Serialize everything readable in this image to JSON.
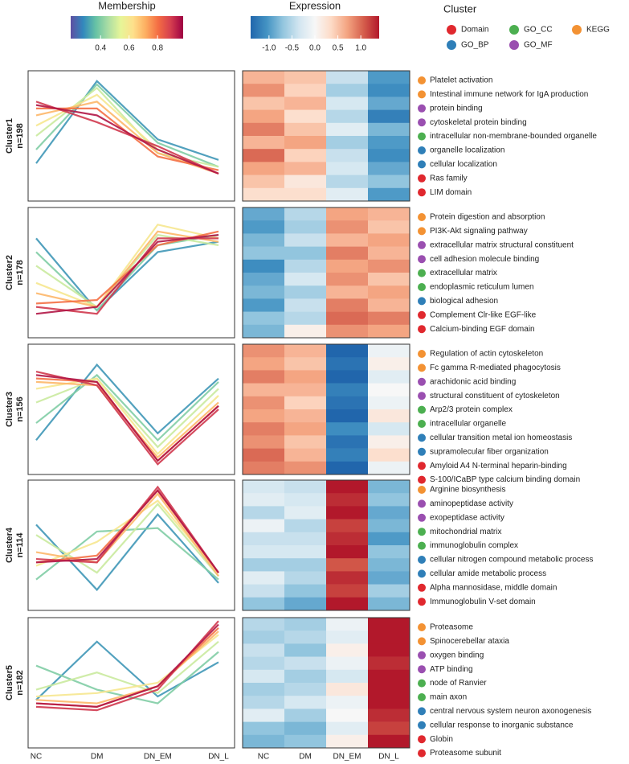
{
  "chart_data": {
    "type": "cluster-profile",
    "membership_legend": {
      "title": "Membership",
      "lim": [
        0.19,
        0.98
      ],
      "ticks": [
        0.4,
        0.6,
        0.8
      ]
    },
    "expression_legend": {
      "title": "Expression",
      "lim": [
        -1.4,
        1.4
      ],
      "ticks": [
        {
          "value": -1.0,
          "label": "-1.0"
        },
        -0.5,
        {
          "value": 0.0,
          "label": "0.0"
        },
        0.5,
        {
          "value": 1.0,
          "label": "1.0"
        }
      ]
    },
    "category_legend": {
      "title": "Cluster",
      "items": [
        {
          "name": "Domain",
          "color": "#e0282e"
        },
        {
          "name": "GO_CC",
          "color": "#4caf50"
        },
        {
          "name": "KEGG",
          "color": "#f39233"
        },
        {
          "name": "GO_BP",
          "color": "#2f7fb8"
        },
        {
          "name": "GO_MF",
          "color": "#9a4fb0"
        }
      ]
    },
    "categories": [
      "NC",
      "DM",
      "DN_EM",
      "DN_L"
    ],
    "ylim": [
      -1.9,
      1.9
    ],
    "clusters": [
      {
        "name": "Cluster1",
        "n": "n=198",
        "profiles": [
          {
            "membership": 0.3,
            "values": [
              -0.8,
              1.6,
              -0.1,
              -0.7
            ]
          },
          {
            "membership": 0.4,
            "values": [
              -0.4,
              1.5,
              -0.2,
              -0.9
            ]
          },
          {
            "membership": 0.5,
            "values": [
              0.0,
              1.4,
              -0.5,
              -0.9
            ]
          },
          {
            "membership": 0.6,
            "values": [
              0.3,
              1.2,
              -0.4,
              -1.1
            ]
          },
          {
            "membership": 0.7,
            "values": [
              0.6,
              1.0,
              -0.5,
              -1.1
            ]
          },
          {
            "membership": 0.8,
            "values": [
              0.8,
              0.8,
              -0.6,
              -1.0
            ]
          },
          {
            "membership": 0.9,
            "values": [
              1.0,
              0.4,
              -0.3,
              -1.1
            ]
          },
          {
            "membership": 0.95,
            "values": [
              0.9,
              0.6,
              -0.4,
              -1.1
            ]
          }
        ],
        "heatmap": [
          [
            0.6,
            0.8,
            0.5,
            0.7,
            0.9,
            0.6,
            1.0,
            0.7,
            0.5,
            0.3
          ],
          [
            0.5,
            0.4,
            0.6,
            0.3,
            0.5,
            0.7,
            0.4,
            0.6,
            0.2,
            0.3
          ],
          [
            -0.4,
            -0.6,
            -0.3,
            -0.5,
            -0.2,
            -0.6,
            -0.4,
            -0.3,
            -0.5,
            -0.2
          ],
          [
            -1.0,
            -1.1,
            -0.9,
            -1.2,
            -0.8,
            -1.0,
            -1.1,
            -0.9,
            -0.7,
            -1.0
          ]
        ],
        "terms": [
          {
            "text": "Platelet activation",
            "category": "KEGG"
          },
          {
            "text": "Intestinal immune network for IgA production",
            "category": "KEGG"
          },
          {
            "text": "protein binding",
            "category": "GO_MF"
          },
          {
            "text": "cytoskeletal protein binding",
            "category": "GO_MF"
          },
          {
            "text": "intracellular non-membrane-bounded organelle",
            "category": "GO_CC"
          },
          {
            "text": "organelle localization",
            "category": "GO_BP"
          },
          {
            "text": "cellular localization",
            "category": "GO_BP"
          },
          {
            "text": "Ras family",
            "category": "Domain"
          },
          {
            "text": "LIM domain",
            "category": "Domain"
          }
        ]
      },
      {
        "name": "Cluster2",
        "n": "n=178",
        "profiles": [
          {
            "membership": 0.3,
            "values": [
              1.0,
              -1.1,
              0.6,
              0.9
            ]
          },
          {
            "membership": 0.4,
            "values": [
              0.6,
              -1.1,
              0.8,
              1.1
            ]
          },
          {
            "membership": 0.5,
            "values": [
              0.2,
              -1.0,
              1.1,
              0.8
            ]
          },
          {
            "membership": 0.6,
            "values": [
              -0.3,
              -1.0,
              1.4,
              1.0
            ]
          },
          {
            "membership": 0.7,
            "values": [
              -0.6,
              -1.0,
              1.2,
              0.9
            ]
          },
          {
            "membership": 0.8,
            "values": [
              -0.9,
              -0.8,
              0.8,
              1.2
            ]
          },
          {
            "membership": 0.9,
            "values": [
              -1.0,
              -1.2,
              1.0,
              1.0
            ]
          },
          {
            "membership": 0.95,
            "values": [
              -1.2,
              -1.0,
              0.9,
              1.1
            ]
          }
        ],
        "heatmap": [
          [
            -0.9,
            -1.0,
            -0.8,
            -0.7,
            -1.1,
            -0.9,
            -0.8,
            -1.0,
            -0.7,
            -0.8
          ],
          [
            -0.5,
            -0.6,
            -0.4,
            -0.7,
            -0.5,
            -0.3,
            -0.6,
            -0.4,
            -0.5,
            0.1
          ],
          [
            0.7,
            0.8,
            0.6,
            0.9,
            0.7,
            0.8,
            0.6,
            0.9,
            1.0,
            0.8
          ],
          [
            0.6,
            0.5,
            0.7,
            0.6,
            0.8,
            0.5,
            0.7,
            0.6,
            0.9,
            0.7
          ]
        ],
        "terms": [
          {
            "text": "Protein digestion and absorption",
            "category": "KEGG"
          },
          {
            "text": "PI3K-Akt signaling pathway",
            "category": "KEGG"
          },
          {
            "text": "extracellular matrix structural constituent",
            "category": "GO_MF"
          },
          {
            "text": "cell adhesion molecule binding",
            "category": "GO_MF"
          },
          {
            "text": "extracellular matrix",
            "category": "GO_CC"
          },
          {
            "text": "endoplasmic reticulum lumen",
            "category": "GO_CC"
          },
          {
            "text": "biological adhesion",
            "category": "GO_BP"
          },
          {
            "text": "Complement Clr-like EGF-like",
            "category": "Domain"
          },
          {
            "text": "Calcium-binding EGF domain",
            "category": "Domain"
          }
        ]
      },
      {
        "name": "Cluster3",
        "n": "n=156",
        "profiles": [
          {
            "membership": 0.3,
            "values": [
              -0.9,
              1.3,
              -0.7,
              0.9
            ]
          },
          {
            "membership": 0.4,
            "values": [
              -0.4,
              1.0,
              -0.9,
              0.8
            ]
          },
          {
            "membership": 0.5,
            "values": [
              0.2,
              0.9,
              -1.1,
              0.6
            ]
          },
          {
            "membership": 0.6,
            "values": [
              0.6,
              0.9,
              -1.3,
              0.4
            ]
          },
          {
            "membership": 0.7,
            "values": [
              0.8,
              0.7,
              -1.4,
              0.2
            ]
          },
          {
            "membership": 0.8,
            "values": [
              0.9,
              0.8,
              -1.5,
              0.1
            ]
          },
          {
            "membership": 0.9,
            "values": [
              1.1,
              0.7,
              -1.6,
              0.0
            ]
          },
          {
            "membership": 0.95,
            "values": [
              1.0,
              0.8,
              -1.5,
              0.1
            ]
          }
        ],
        "heatmap": [
          [
            0.8,
            0.7,
            0.9,
            0.6,
            0.8,
            0.7,
            0.9,
            0.8,
            1.0,
            0.9
          ],
          [
            0.6,
            0.5,
            0.7,
            0.6,
            0.4,
            0.6,
            0.7,
            0.5,
            0.6,
            0.8
          ],
          [
            -1.4,
            -1.3,
            -1.4,
            -1.2,
            -1.3,
            -1.4,
            -1.1,
            -1.3,
            -1.2,
            -1.4
          ],
          [
            -0.1,
            0.1,
            -0.2,
            0.0,
            -0.1,
            0.2,
            -0.3,
            0.1,
            0.3,
            -0.1
          ]
        ],
        "terms": [
          {
            "text": "Regulation of actin cytoskeleton",
            "category": "KEGG"
          },
          {
            "text": "Fc gamma R-mediated phagocytosis",
            "category": "KEGG"
          },
          {
            "text": "arachidonic acid binding",
            "category": "GO_MF"
          },
          {
            "text": "structural constituent of cytoskeleton",
            "category": "GO_MF"
          },
          {
            "text": "Arp2/3 protein complex",
            "category": "GO_CC"
          },
          {
            "text": "intracellular organelle",
            "category": "GO_CC"
          },
          {
            "text": "cellular transition metal ion homeostasis",
            "category": "GO_BP"
          },
          {
            "text": "supramolecular fiber organization",
            "category": "GO_BP"
          },
          {
            "text": "Amyloid A4 N-terminal heparin-binding",
            "category": "Domain"
          },
          {
            "text": "S-100/ICaBP type calcium binding domain",
            "category": "Domain"
          }
        ]
      },
      {
        "name": "Cluster4",
        "n": "n=114",
        "profiles": [
          {
            "membership": 0.3,
            "values": [
              0.6,
              -1.3,
              0.9,
              -1.1
            ]
          },
          {
            "membership": 0.4,
            "values": [
              -1.0,
              0.4,
              0.5,
              -1.0
            ]
          },
          {
            "membership": 0.5,
            "values": [
              0.3,
              -0.8,
              1.2,
              -0.9
            ]
          },
          {
            "membership": 0.6,
            "values": [
              -0.6,
              0.1,
              1.3,
              -0.8
            ]
          },
          {
            "membership": 0.7,
            "values": [
              -0.2,
              -0.5,
              1.5,
              -0.9
            ]
          },
          {
            "membership": 0.8,
            "values": [
              -0.5,
              -0.3,
              1.6,
              -0.8
            ]
          },
          {
            "membership": 0.9,
            "values": [
              -0.4,
              -0.5,
              1.7,
              -0.8
            ]
          },
          {
            "membership": 0.95,
            "values": [
              -0.5,
              -0.4,
              1.6,
              -0.8
            ]
          }
        ],
        "heatmap": [
          [
            -0.3,
            -0.2,
            -0.5,
            -0.1,
            -0.4,
            -0.3,
            -0.6,
            -0.2,
            -0.4,
            -0.7
          ],
          [
            -0.4,
            -0.3,
            -0.2,
            -0.5,
            -0.4,
            -0.3,
            -0.6,
            -0.5,
            -0.7,
            -0.9
          ],
          [
            1.4,
            1.3,
            1.4,
            1.2,
            1.3,
            1.4,
            1.1,
            1.3,
            1.2,
            1.4
          ],
          [
            -0.8,
            -0.7,
            -0.9,
            -0.8,
            -1.0,
            -0.7,
            -0.8,
            -0.9,
            -0.6,
            -0.8
          ]
        ],
        "terms": [
          {
            "text": "Arginine biosynthesis",
            "category": "KEGG"
          },
          {
            "text": "aminopeptidase activity",
            "category": "GO_MF"
          },
          {
            "text": "exopeptidase activity",
            "category": "GO_MF"
          },
          {
            "text": "mitochondrial matrix",
            "category": "GO_CC"
          },
          {
            "text": "immunoglobulin complex",
            "category": "GO_CC"
          },
          {
            "text": "cellular nitrogen compound metabolic process",
            "category": "GO_BP"
          },
          {
            "text": "cellular amide metabolic process",
            "category": "GO_BP"
          },
          {
            "text": "Alpha mannosidase, middle domain",
            "category": "Domain"
          },
          {
            "text": "Immunoglobulin V-set domain",
            "category": "Domain"
          }
        ]
      },
      {
        "name": "Cluster5",
        "n": "n=182",
        "profiles": [
          {
            "membership": 0.3,
            "values": [
              -0.5,
              1.2,
              -0.4,
              0.6
            ]
          },
          {
            "membership": 0.4,
            "values": [
              0.5,
              -0.2,
              -0.6,
              0.9
            ]
          },
          {
            "membership": 0.5,
            "values": [
              -0.2,
              0.3,
              -0.3,
              1.2
            ]
          },
          {
            "membership": 0.6,
            "values": [
              -0.4,
              -0.3,
              0.0,
              1.4
            ]
          },
          {
            "membership": 0.7,
            "values": [
              -0.5,
              -0.6,
              -0.1,
              1.5
            ]
          },
          {
            "membership": 0.8,
            "values": [
              -0.6,
              -0.7,
              -0.1,
              1.6
            ]
          },
          {
            "membership": 0.9,
            "values": [
              -0.7,
              -0.8,
              -0.2,
              1.8
            ]
          },
          {
            "membership": 0.95,
            "values": [
              -0.6,
              -0.7,
              -0.1,
              1.7
            ]
          }
        ],
        "heatmap": [
          [
            -0.5,
            -0.6,
            -0.4,
            -0.5,
            -0.3,
            -0.6,
            -0.5,
            -0.2,
            -0.7,
            -0.8
          ],
          [
            -0.6,
            -0.5,
            -0.7,
            -0.4,
            -0.6,
            -0.5,
            -0.3,
            -0.6,
            -0.8,
            -0.7
          ],
          [
            -0.1,
            -0.2,
            0.1,
            -0.1,
            -0.3,
            0.2,
            -0.1,
            0.0,
            -0.2,
            0.1
          ],
          [
            1.5,
            1.4,
            1.5,
            1.3,
            1.4,
            1.5,
            1.4,
            1.3,
            1.2,
            1.4
          ]
        ],
        "terms": [
          {
            "text": "Proteasome",
            "category": "KEGG"
          },
          {
            "text": "Spinocerebellar ataxia",
            "category": "KEGG"
          },
          {
            "text": "oxygen binding",
            "category": "GO_MF"
          },
          {
            "text": "ATP binding",
            "category": "GO_MF"
          },
          {
            "text": "node of Ranvier",
            "category": "GO_CC"
          },
          {
            "text": "main axon",
            "category": "GO_CC"
          },
          {
            "text": "central nervous system neuron axonogenesis",
            "category": "GO_BP"
          },
          {
            "text": "cellular response to inorganic substance",
            "category": "GO_BP"
          },
          {
            "text": "Globin",
            "category": "Domain"
          },
          {
            "text": "Proteasome subunit",
            "category": "Domain"
          }
        ]
      }
    ]
  }
}
